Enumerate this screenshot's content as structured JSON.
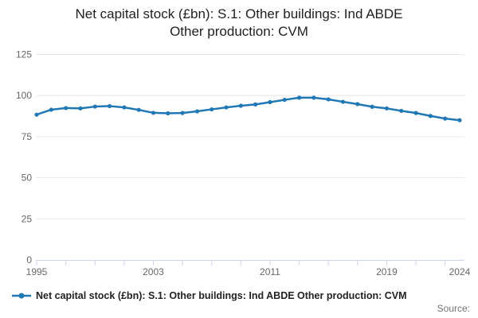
{
  "chart_data": {
    "type": "line",
    "title": "Net capital stock (£bn): S.1: Other buildings: Ind ABDE Other production: CVM",
    "title_lines": [
      "Net capital stock (£bn): S.1: Other buildings: Ind ABDE",
      "Other production: CVM"
    ],
    "x": [
      1995,
      1996,
      1997,
      1998,
      1999,
      2000,
      2001,
      2002,
      2003,
      2004,
      2005,
      2006,
      2007,
      2008,
      2009,
      2010,
      2011,
      2012,
      2013,
      2014,
      2015,
      2016,
      2017,
      2018,
      2019,
      2020,
      2021,
      2022,
      2023,
      2024
    ],
    "series": [
      {
        "name": "Net capital stock (£bn): S.1: Other buildings: Ind ABDE Other production: CVM",
        "color": "#1f77b4",
        "values": [
          88.4,
          91.4,
          92.4,
          92.2,
          93.3,
          93.6,
          92.8,
          91.3,
          89.5,
          89.2,
          89.4,
          90.4,
          91.6,
          92.8,
          93.8,
          94.6,
          96.0,
          97.4,
          98.7,
          98.7,
          97.7,
          96.2,
          94.8,
          93.2,
          92.2,
          90.7,
          89.4,
          87.6,
          86.0,
          85.0
        ]
      }
    ],
    "ylim": [
      0,
      125
    ],
    "yticks": [
      0,
      25,
      50,
      75,
      100,
      125
    ],
    "xtick_labels": [
      1995,
      2003,
      2011,
      2019,
      2024
    ],
    "minor_xtick_step_years": 2,
    "grid": true,
    "legend_position": "bottom-left",
    "colors": {
      "grid": "#e6e6e6",
      "axis_line": "#ccd6eb",
      "tick_text": "#666666",
      "title_text": "#1f1f1f",
      "legend_text": "#222222",
      "source_text": "#737373"
    }
  },
  "legend": {
    "item_label": "Net capital stock (£bn): S.1: Other buildings: Ind ABDE Other production: CVM"
  },
  "footer": {
    "source_label": "Source:"
  }
}
